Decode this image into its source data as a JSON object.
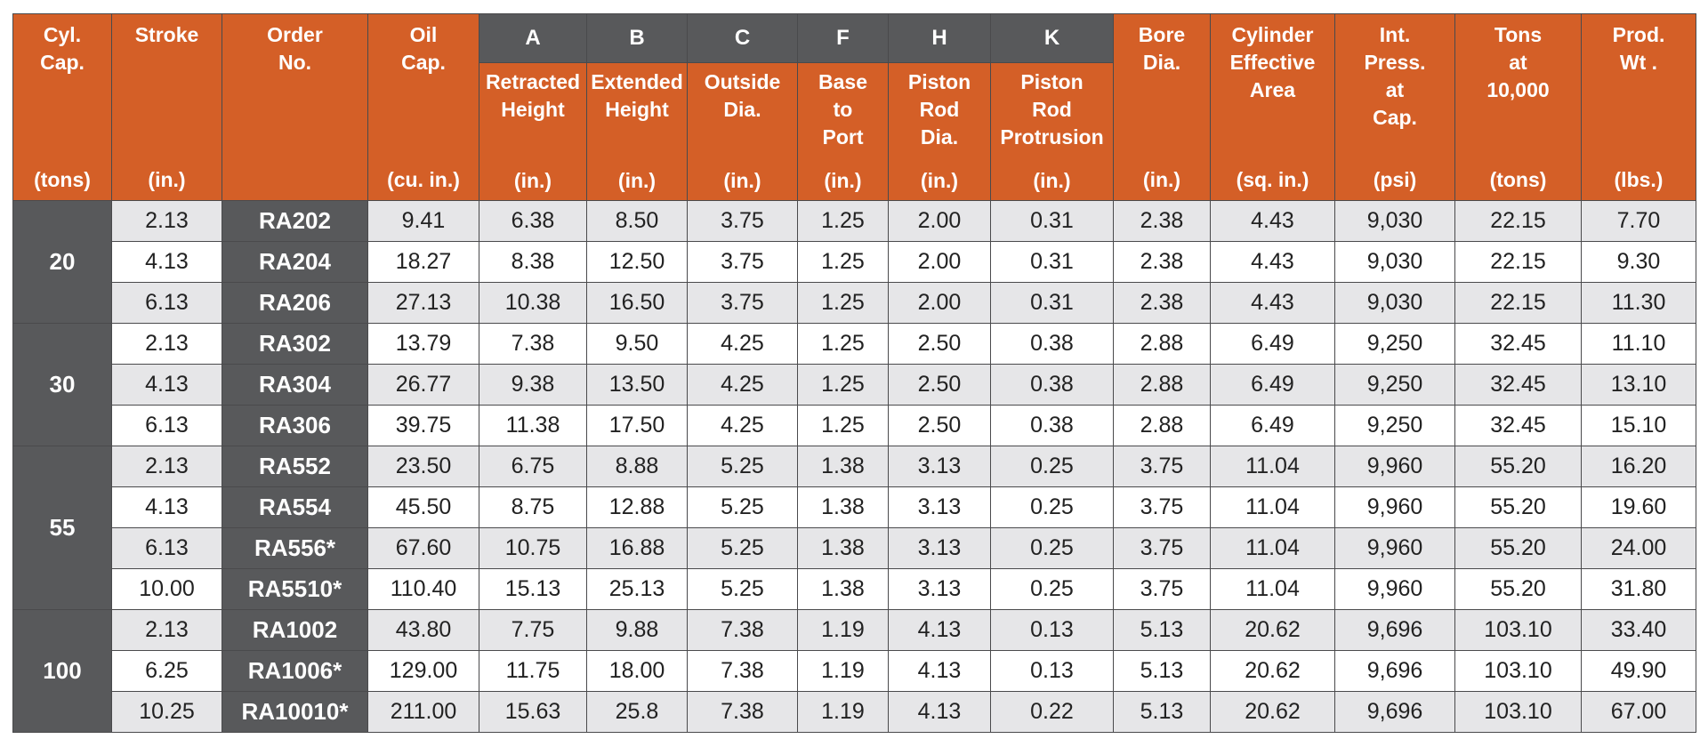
{
  "table": {
    "columns": [
      {
        "lines": [
          "Cyl.",
          "Cap."
        ],
        "unit": "(tons)"
      },
      {
        "lines": [
          "Stroke"
        ],
        "unit": "(in.)"
      },
      {
        "lines": [
          "Order",
          "No."
        ],
        "unit": null
      },
      {
        "lines": [
          "Oil",
          "Cap."
        ],
        "unit": "(cu. in.)"
      },
      {
        "letter": "A",
        "lines": [
          "Retracted",
          "Height"
        ],
        "unit": "(in.)"
      },
      {
        "letter": "B",
        "lines": [
          "Extended",
          "Height"
        ],
        "unit": "(in.)"
      },
      {
        "letter": "C",
        "lines": [
          "Outside",
          "Dia."
        ],
        "unit": "(in.)"
      },
      {
        "letter": "F",
        "lines": [
          "Base",
          "to",
          "Port"
        ],
        "unit": "(in.)"
      },
      {
        "letter": "H",
        "lines": [
          "Piston",
          "Rod",
          "Dia."
        ],
        "unit": "(in.)"
      },
      {
        "letter": "K",
        "lines": [
          "Piston",
          "Rod",
          "Protrusion"
        ],
        "unit": "(in.)"
      },
      {
        "lines": [
          "Bore",
          "Dia."
        ],
        "unit": "(in.)"
      },
      {
        "lines": [
          "Cylinder",
          "Effective",
          "Area"
        ],
        "unit": "(sq. in.)"
      },
      {
        "lines": [
          "Int.",
          "Press.",
          "at",
          "Cap."
        ],
        "unit": "(psi)"
      },
      {
        "lines": [
          "Tons",
          "at",
          "10,000"
        ],
        "unit": "(tons)"
      },
      {
        "lines": [
          "Prod.",
          "Wt ."
        ],
        "unit": "(lbs.)"
      }
    ],
    "groups": [
      {
        "capacity": "20",
        "rows": [
          [
            "2.13",
            "RA202",
            "9.41",
            "6.38",
            "8.50",
            "3.75",
            "1.25",
            "2.00",
            "0.31",
            "2.38",
            "4.43",
            "9,030",
            "22.15",
            "7.70"
          ],
          [
            "4.13",
            "RA204",
            "18.27",
            "8.38",
            "12.50",
            "3.75",
            "1.25",
            "2.00",
            "0.31",
            "2.38",
            "4.43",
            "9,030",
            "22.15",
            "9.30"
          ],
          [
            "6.13",
            "RA206",
            "27.13",
            "10.38",
            "16.50",
            "3.75",
            "1.25",
            "2.00",
            "0.31",
            "2.38",
            "4.43",
            "9,030",
            "22.15",
            "11.30"
          ]
        ]
      },
      {
        "capacity": "30",
        "rows": [
          [
            "2.13",
            "RA302",
            "13.79",
            "7.38",
            "9.50",
            "4.25",
            "1.25",
            "2.50",
            "0.38",
            "2.88",
            "6.49",
            "9,250",
            "32.45",
            "11.10"
          ],
          [
            "4.13",
            "RA304",
            "26.77",
            "9.38",
            "13.50",
            "4.25",
            "1.25",
            "2.50",
            "0.38",
            "2.88",
            "6.49",
            "9,250",
            "32.45",
            "13.10"
          ],
          [
            "6.13",
            "RA306",
            "39.75",
            "11.38",
            "17.50",
            "4.25",
            "1.25",
            "2.50",
            "0.38",
            "2.88",
            "6.49",
            "9,250",
            "32.45",
            "15.10"
          ]
        ]
      },
      {
        "capacity": "55",
        "rows": [
          [
            "2.13",
            "RA552",
            "23.50",
            "6.75",
            "8.88",
            "5.25",
            "1.38",
            "3.13",
            "0.25",
            "3.75",
            "11.04",
            "9,960",
            "55.20",
            "16.20"
          ],
          [
            "4.13",
            "RA554",
            "45.50",
            "8.75",
            "12.88",
            "5.25",
            "1.38",
            "3.13",
            "0.25",
            "3.75",
            "11.04",
            "9,960",
            "55.20",
            "19.60"
          ],
          [
            "6.13",
            "RA556*",
            "67.60",
            "10.75",
            "16.88",
            "5.25",
            "1.38",
            "3.13",
            "0.25",
            "3.75",
            "11.04",
            "9,960",
            "55.20",
            "24.00"
          ],
          [
            "10.00",
            "RA5510*",
            "110.40",
            "15.13",
            "25.13",
            "5.25",
            "1.38",
            "3.13",
            "0.25",
            "3.75",
            "11.04",
            "9,960",
            "55.20",
            "31.80"
          ]
        ]
      },
      {
        "capacity": "100",
        "rows": [
          [
            "2.13",
            "RA1002",
            "43.80",
            "7.75",
            "9.88",
            "7.38",
            "1.19",
            "4.13",
            "0.13",
            "5.13",
            "20.62",
            "9,696",
            "103.10",
            "33.40"
          ],
          [
            "6.25",
            "RA1006*",
            "129.00",
            "11.75",
            "18.00",
            "7.38",
            "1.19",
            "4.13",
            "0.13",
            "5.13",
            "20.62",
            "9,696",
            "103.10",
            "49.90"
          ],
          [
            "10.25",
            "RA10010*",
            "211.00",
            "15.63",
            "25.8",
            "7.38",
            "1.19",
            "4.13",
            "0.22",
            "5.13",
            "20.62",
            "9,696",
            "103.10",
            "67.00"
          ]
        ]
      }
    ]
  }
}
